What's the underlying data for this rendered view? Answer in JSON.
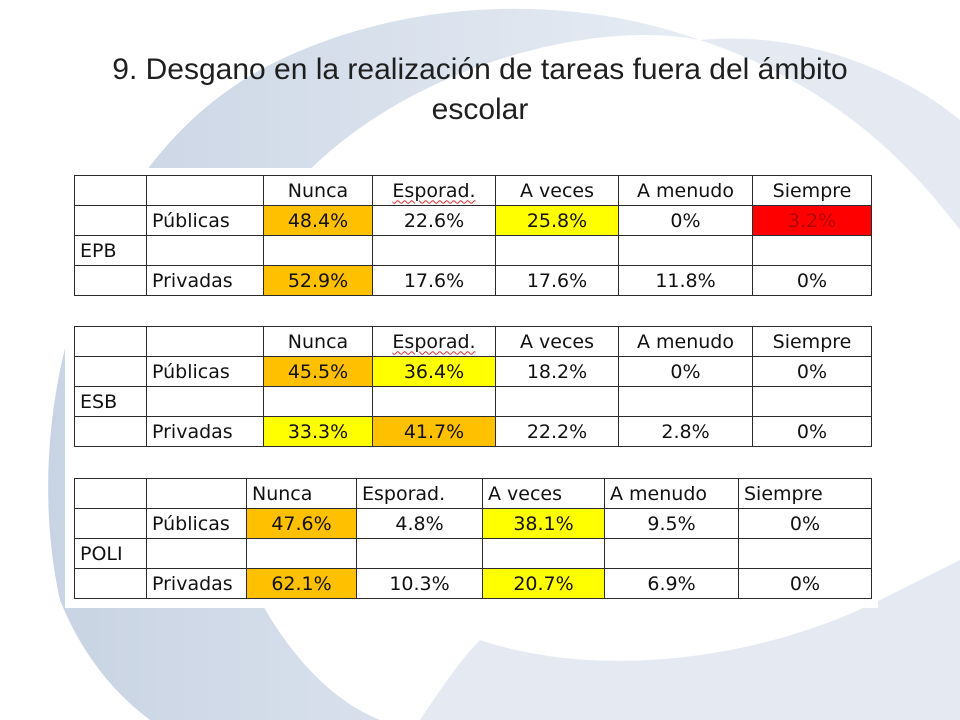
{
  "title_line1": "9. Desgano en la realización de tareas fuera del ámbito",
  "title_line2": "escolar",
  "colors": {
    "orange": "#ffc000",
    "yellow": "#ffff00",
    "red": "#ff0000",
    "background_arc": "#c9d4e4"
  },
  "tables": [
    {
      "level": "EPB",
      "headers": [
        "Nunca",
        "Esporad.",
        "A veces",
        "A menudo",
        "Siempre"
      ],
      "publicas": {
        "label": "Públicas",
        "values": [
          "48.4%",
          "22.6%",
          "25.8%",
          "0%",
          "3.2%"
        ]
      },
      "privadas": {
        "label": "Privadas",
        "values": [
          "52.9%",
          "17.6%",
          "17.6%",
          "11.8%",
          "0%"
        ]
      }
    },
    {
      "level": "ESB",
      "headers": [
        "Nunca",
        "Esporad.",
        "A veces",
        "A menudo",
        "Siempre"
      ],
      "publicas": {
        "label": "Públicas",
        "values": [
          "45.5%",
          "36.4%",
          "18.2%",
          "0%",
          "0%"
        ]
      },
      "privadas": {
        "label": "Privadas",
        "values": [
          "33.3%",
          "41.7%",
          "22.2%",
          "2.8%",
          "0%"
        ]
      }
    },
    {
      "level": "POLI",
      "headers": [
        "Nunca",
        "Esporad.",
        "A veces",
        "A menudo",
        "Siempre"
      ],
      "publicas": {
        "label": "Públicas",
        "values": [
          "47.6%",
          "4.8%",
          "38.1%",
          "9.5%",
          "0%"
        ]
      },
      "privadas": {
        "label": "Privadas",
        "values": [
          "62.1%",
          "10.3%",
          "20.7%",
          "6.9%",
          "0%"
        ]
      }
    }
  ]
}
